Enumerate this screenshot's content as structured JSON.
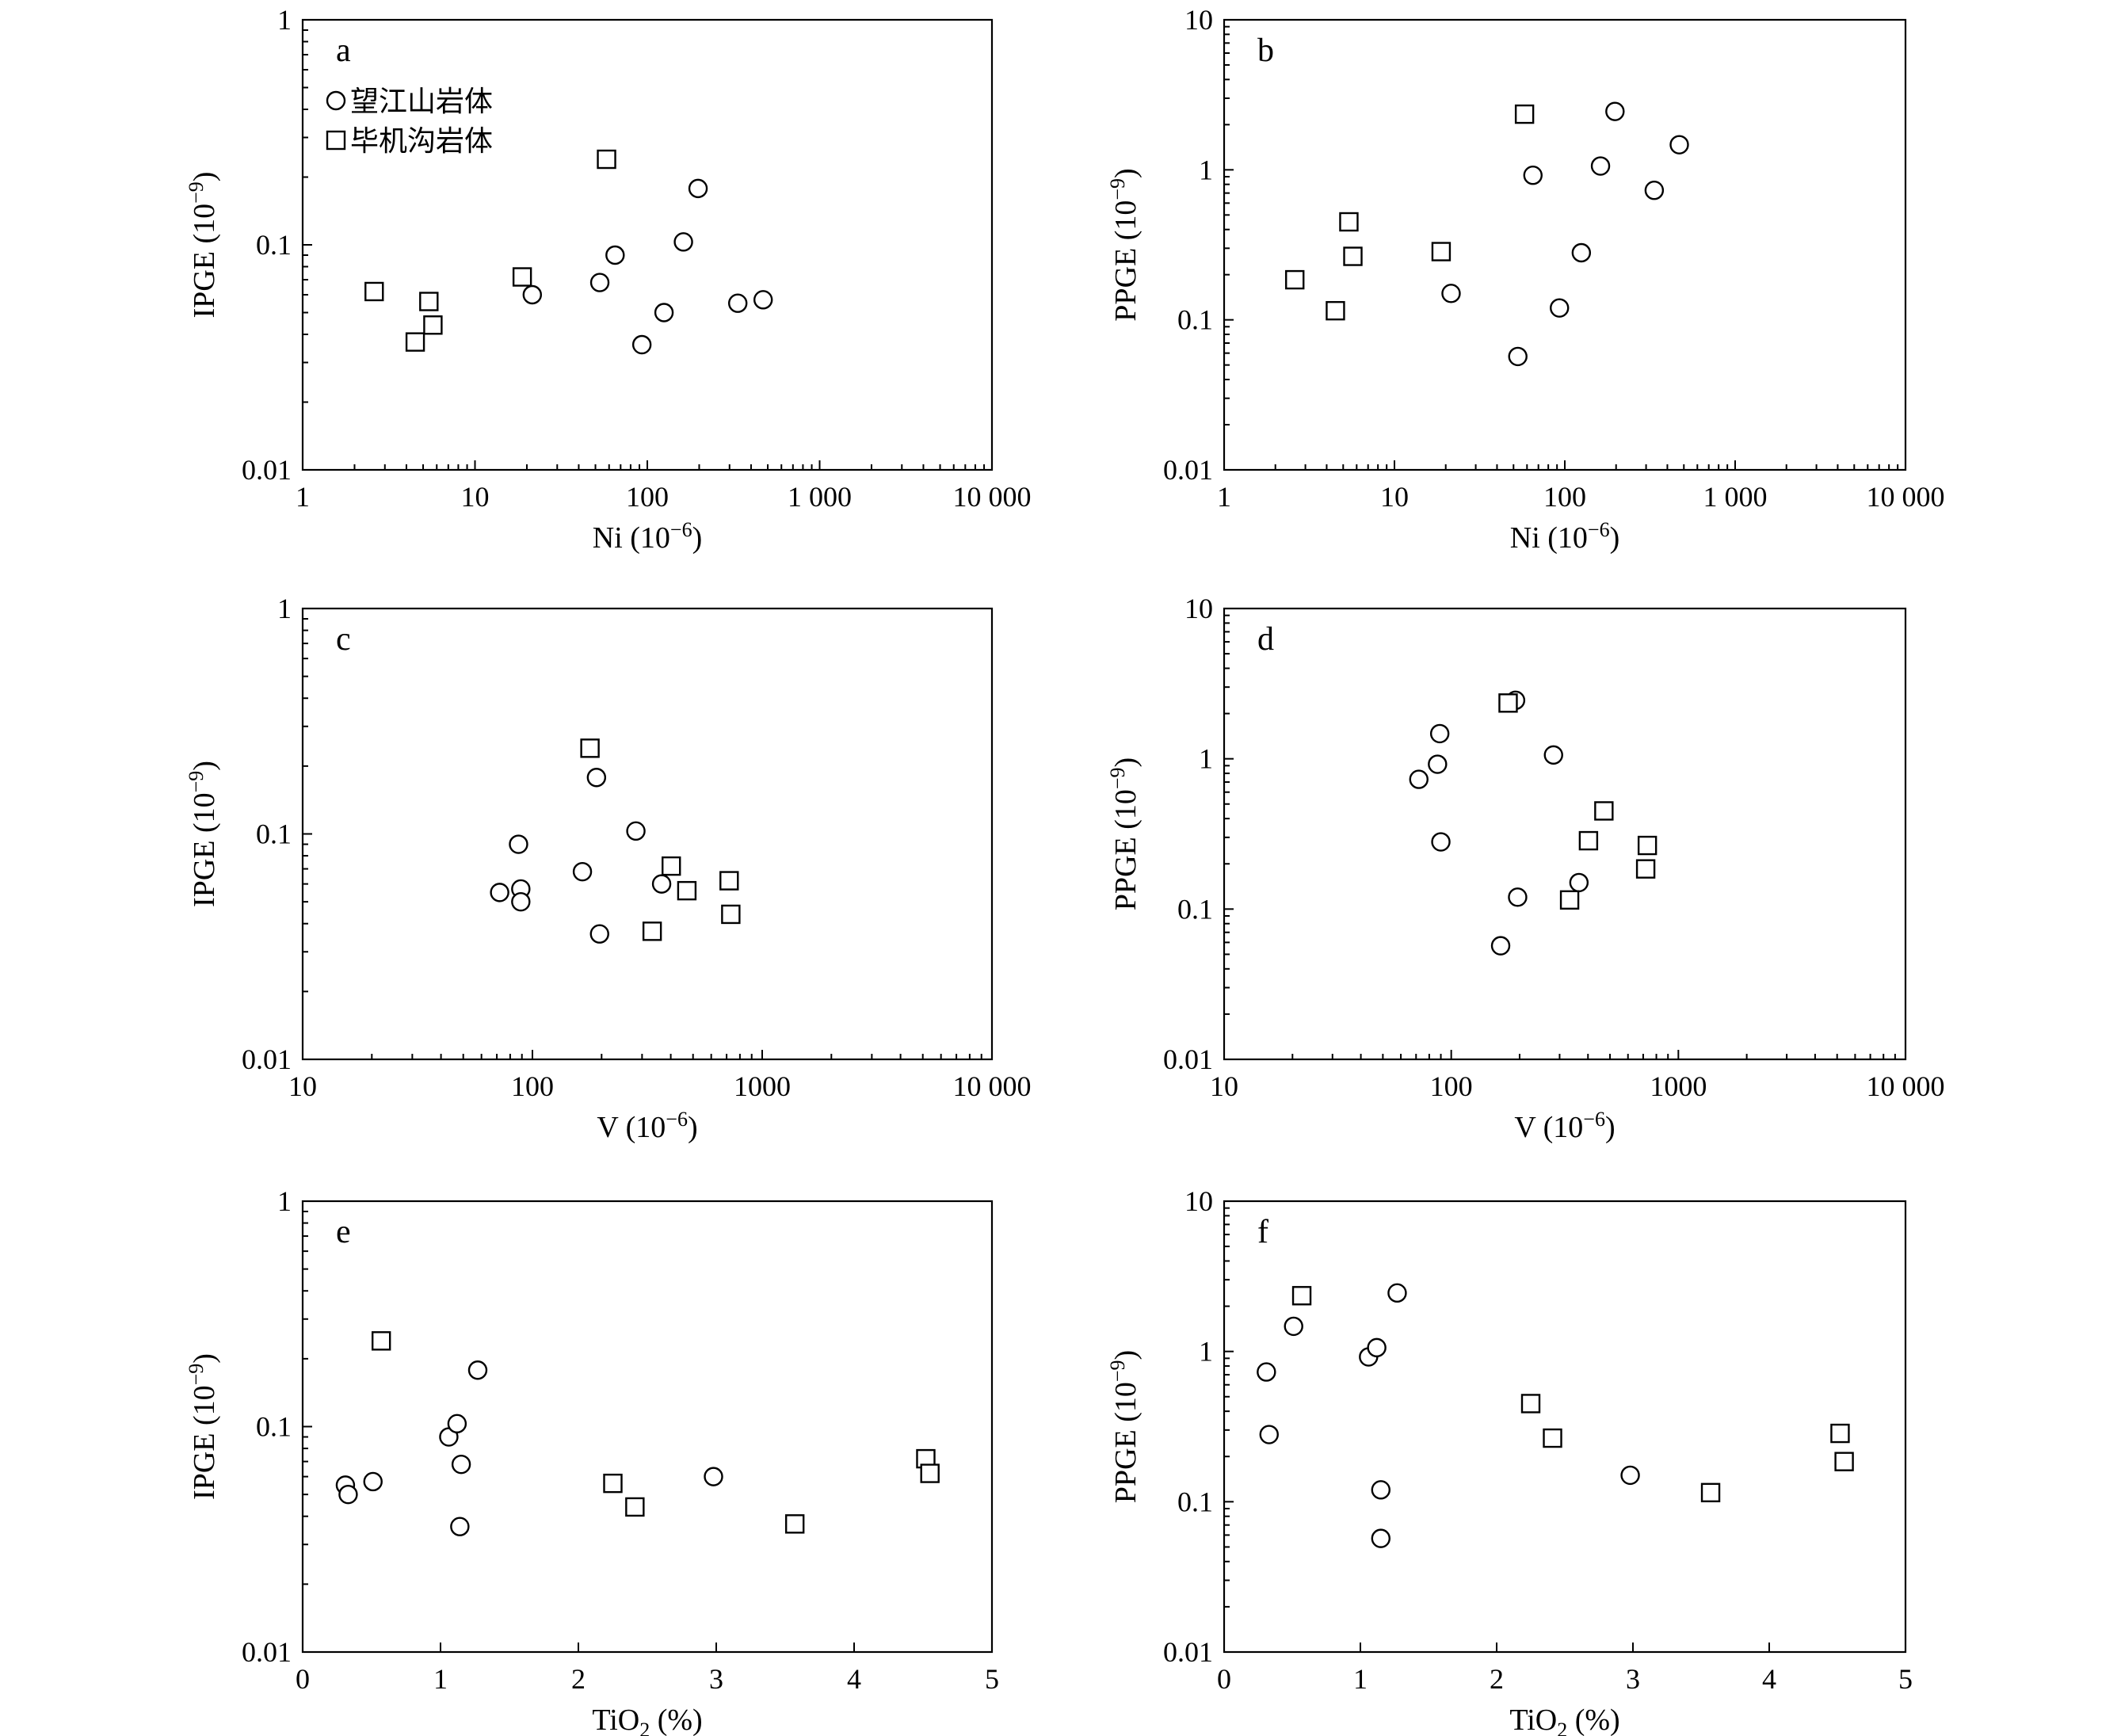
{
  "legend": [
    {
      "marker": "circle",
      "label": "望江山岩体"
    },
    {
      "marker": "square",
      "label": "毕机沟岩体"
    }
  ],
  "chart_data": [
    {
      "panel": "a",
      "type": "scatter",
      "xlabel": "Ni (10⁻⁶)",
      "ylabel": "IPGE (10⁻⁹)",
      "xscale": "log",
      "yscale": "log",
      "xlim": [
        1,
        10000
      ],
      "ylim": [
        0.01,
        1
      ],
      "xticks": [
        1,
        10,
        100,
        1000,
        10000
      ],
      "xticklabels": [
        "1",
        "10",
        "100",
        "1 000",
        "10 000"
      ],
      "yticks": [
        0.01,
        0.1,
        1
      ],
      "yticklabels": [
        "0.01",
        "0.1",
        "1"
      ],
      "legend_position": "top-left",
      "series": [
        {
          "name": "望江山岩体",
          "marker": "circle",
          "points": [
            [
              21.5,
              0.06
            ],
            [
              53,
              0.068
            ],
            [
              65,
              0.09
            ],
            [
              93,
              0.036
            ],
            [
              125,
              0.05
            ],
            [
              162,
              0.103
            ],
            [
              197,
              0.178
            ],
            [
              335,
              0.055
            ],
            [
              470,
              0.057
            ]
          ]
        },
        {
          "name": "毕机沟岩体",
          "marker": "square",
          "points": [
            [
              2.6,
              0.062
            ],
            [
              4.5,
              0.037
            ],
            [
              5.4,
              0.056
            ],
            [
              5.7,
              0.044
            ],
            [
              18.8,
              0.072
            ],
            [
              58,
              0.24
            ]
          ]
        }
      ]
    },
    {
      "panel": "b",
      "type": "scatter",
      "xlabel": "Ni (10⁻⁶)",
      "ylabel": "PPGE (10⁻⁹)",
      "xscale": "log",
      "yscale": "log",
      "xlim": [
        1,
        10000
      ],
      "ylim": [
        0.01,
        10
      ],
      "xticks": [
        1,
        10,
        100,
        1000,
        10000
      ],
      "xticklabels": [
        "1",
        "10",
        "100",
        "1 000",
        "10 000"
      ],
      "yticks": [
        0.01,
        0.1,
        1,
        10
      ],
      "yticklabels": [
        "0.01",
        "0.1",
        "1",
        "10"
      ],
      "series": [
        {
          "name": "望江山岩体",
          "marker": "circle",
          "points": [
            [
              21.5,
              0.15
            ],
            [
              53,
              0.057
            ],
            [
              65,
              0.92
            ],
            [
              93,
              0.12
            ],
            [
              125,
              0.28
            ],
            [
              162,
              1.06
            ],
            [
              197,
              2.45
            ],
            [
              335,
              0.73
            ],
            [
              470,
              1.47
            ]
          ]
        },
        {
          "name": "毕机沟岩体",
          "marker": "square",
          "points": [
            [
              2.6,
              0.185
            ],
            [
              4.5,
              0.115
            ],
            [
              5.4,
              0.45
            ],
            [
              5.7,
              0.265
            ],
            [
              18.8,
              0.285
            ],
            [
              58,
              2.35
            ]
          ]
        }
      ]
    },
    {
      "panel": "c",
      "type": "scatter",
      "xlabel": "V (10⁻⁶)",
      "ylabel": "IPGE (10⁻⁹)",
      "xscale": "log",
      "yscale": "log",
      "xlim": [
        10,
        10000
      ],
      "ylim": [
        0.01,
        1
      ],
      "xticks": [
        10,
        100,
        1000,
        10000
      ],
      "xticklabels": [
        "10",
        "100",
        "1000",
        "10 000"
      ],
      "yticks": [
        0.01,
        0.1,
        1
      ],
      "yticklabels": [
        "0.01",
        "0.1",
        "1"
      ],
      "series": [
        {
          "name": "望江山岩体",
          "marker": "circle",
          "points": [
            [
              72,
              0.055
            ],
            [
              87,
              0.09
            ],
            [
              89,
              0.057
            ],
            [
              89,
              0.05
            ],
            [
              165,
              0.068
            ],
            [
              190,
              0.178
            ],
            [
              196,
              0.036
            ],
            [
              282,
              0.103
            ],
            [
              365,
              0.06
            ]
          ]
        },
        {
          "name": "毕机沟岩体",
          "marker": "square",
          "points": [
            [
              178,
              0.24
            ],
            [
              332,
              0.037
            ],
            [
              402,
              0.072
            ],
            [
              470,
              0.056
            ],
            [
              718,
              0.062
            ],
            [
              730,
              0.044
            ]
          ]
        }
      ]
    },
    {
      "panel": "d",
      "type": "scatter",
      "xlabel": "V (10⁻⁶)",
      "ylabel": "PPGE (10⁻⁹)",
      "xscale": "log",
      "yscale": "log",
      "xlim": [
        10,
        10000
      ],
      "ylim": [
        0.01,
        10
      ],
      "xticks": [
        10,
        100,
        1000,
        10000
      ],
      "xticklabels": [
        "10",
        "100",
        "1000",
        "10 000"
      ],
      "yticks": [
        0.01,
        0.1,
        1,
        10
      ],
      "yticklabels": [
        "0.01",
        "0.1",
        "1",
        "10"
      ],
      "series": [
        {
          "name": "望江山岩体",
          "marker": "circle",
          "points": [
            [
              72,
              0.73
            ],
            [
              87,
              0.92
            ],
            [
              89,
              1.47
            ],
            [
              90,
              0.28
            ],
            [
              165,
              0.057
            ],
            [
              192,
              2.45
            ],
            [
              196,
              0.12
            ],
            [
              282,
              1.06
            ],
            [
              365,
              0.15
            ]
          ]
        },
        {
          "name": "毕机沟岩体",
          "marker": "square",
          "points": [
            [
              178,
              2.35
            ],
            [
              332,
              0.115
            ],
            [
              402,
              0.285
            ],
            [
              470,
              0.45
            ],
            [
              718,
              0.185
            ],
            [
              730,
              0.265
            ]
          ]
        }
      ]
    },
    {
      "panel": "e",
      "type": "scatter",
      "xlabel": "TiO₂ (%)",
      "ylabel": "IPGE (10⁻⁹)",
      "xscale": "linear",
      "yscale": "log",
      "xlim": [
        0,
        5
      ],
      "ylim": [
        0.01,
        1
      ],
      "xticks": [
        0,
        1,
        2,
        3,
        4,
        5
      ],
      "xticklabels": [
        "0",
        "1",
        "2",
        "3",
        "4",
        "5"
      ],
      "yticks": [
        0.01,
        0.1,
        1
      ],
      "yticklabels": [
        "0.01",
        "0.1",
        "1"
      ],
      "series": [
        {
          "name": "望江山岩体",
          "marker": "circle",
          "points": [
            [
              0.31,
              0.055
            ],
            [
              0.33,
              0.05
            ],
            [
              0.51,
              0.057
            ],
            [
              1.06,
              0.09
            ],
            [
              1.12,
              0.103
            ],
            [
              1.14,
              0.036
            ],
            [
              1.15,
              0.068
            ],
            [
              1.27,
              0.178
            ],
            [
              2.98,
              0.06
            ]
          ]
        },
        {
          "name": "毕机沟岩体",
          "marker": "square",
          "points": [
            [
              0.57,
              0.24
            ],
            [
              2.25,
              0.056
            ],
            [
              2.41,
              0.044
            ],
            [
              3.57,
              0.037
            ],
            [
              4.52,
              0.072
            ],
            [
              4.55,
              0.062
            ]
          ]
        }
      ]
    },
    {
      "panel": "f",
      "type": "scatter",
      "xlabel": "TiO₂ (%)",
      "ylabel": "PPGE (10⁻⁹)",
      "xscale": "linear",
      "yscale": "log",
      "xlim": [
        0,
        5
      ],
      "ylim": [
        0.01,
        10
      ],
      "xticks": [
        0,
        1,
        2,
        3,
        4,
        5
      ],
      "xticklabels": [
        "0",
        "1",
        "2",
        "3",
        "4",
        "5"
      ],
      "yticks": [
        0.01,
        0.1,
        1,
        10
      ],
      "yticklabels": [
        "0.01",
        "0.1",
        "1",
        "10"
      ],
      "series": [
        {
          "name": "望江山岩体",
          "marker": "circle",
          "points": [
            [
              0.31,
              0.73
            ],
            [
              0.33,
              0.28
            ],
            [
              0.51,
              1.47
            ],
            [
              1.06,
              0.92
            ],
            [
              1.12,
              1.06
            ],
            [
              1.15,
              0.12
            ],
            [
              1.15,
              0.057
            ],
            [
              1.27,
              2.45
            ],
            [
              2.98,
              0.15
            ]
          ]
        },
        {
          "name": "毕机沟岩体",
          "marker": "square",
          "points": [
            [
              0.57,
              2.35
            ],
            [
              2.25,
              0.45
            ],
            [
              2.41,
              0.265
            ],
            [
              3.57,
              0.115
            ],
            [
              4.52,
              0.285
            ],
            [
              4.55,
              0.185
            ]
          ]
        }
      ]
    }
  ]
}
